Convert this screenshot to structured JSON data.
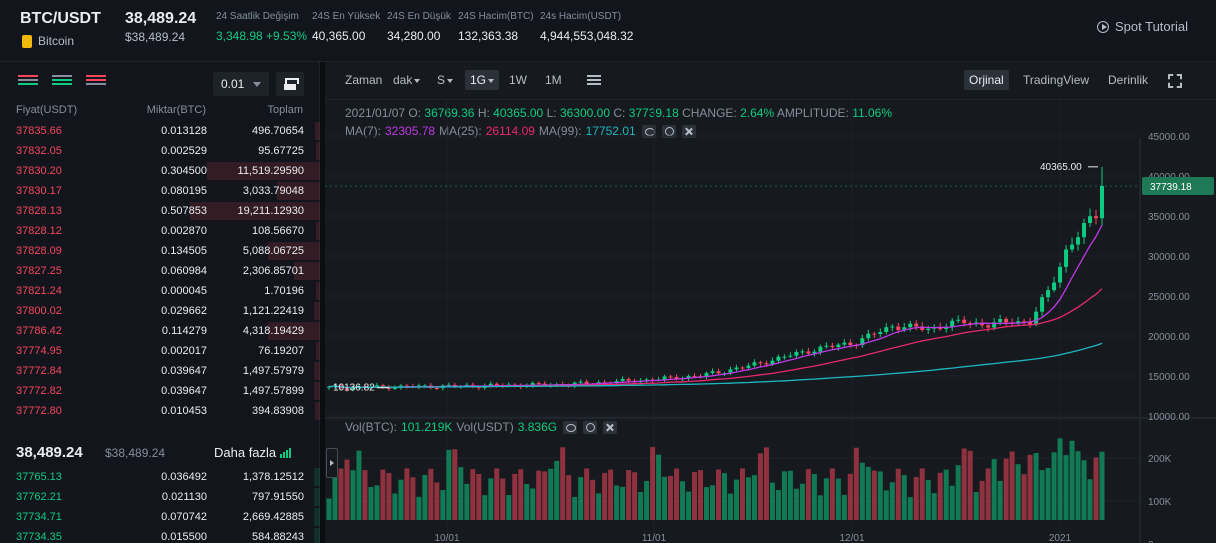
{
  "header": {
    "pair": "BTC/USDT",
    "coin_name": "Bitcoin",
    "last_price": "38,489.24",
    "last_price_usd": "$38,489.24",
    "stats": [
      {
        "label": "24 Saatlik Değişim",
        "value": "3,348.98 +9.53%",
        "color": "green"
      },
      {
        "label": "24S En Yüksek",
        "value": "40,365.00"
      },
      {
        "label": "24S En Düşük",
        "value": "34,280.00"
      },
      {
        "label": "24S Hacim(BTC)",
        "value": "132,363.38"
      },
      {
        "label": "24s Hacim(USDT)",
        "value": "4,944,553,048.32"
      }
    ],
    "spot_tutorial": "Spot Tutorial"
  },
  "orderbook": {
    "precision": "0.01",
    "col_price": "Fiyat(USDT)",
    "col_amount": "Miktar(BTC)",
    "col_total": "Toplam",
    "asks": [
      {
        "price": "37835.66",
        "amount": "0.013128",
        "total": "496.70654",
        "depth": 0.04
      },
      {
        "price": "37832.05",
        "amount": "0.002529",
        "total": "95.67725",
        "depth": 0.02
      },
      {
        "price": "37830.20",
        "amount": "0.304500",
        "total": "11,519.29590",
        "depth": 0.87
      },
      {
        "price": "37830.17",
        "amount": "0.080195",
        "total": "3,033.79048",
        "depth": 0.33
      },
      {
        "price": "37828.13",
        "amount": "0.507853",
        "total": "19,211.12930",
        "depth": 1.0
      },
      {
        "price": "37828.12",
        "amount": "0.002870",
        "total": "108.56670",
        "depth": 0.03
      },
      {
        "price": "37828.09",
        "amount": "0.134505",
        "total": "5,088.06725",
        "depth": 0.4
      },
      {
        "price": "37827.25",
        "amount": "0.060984",
        "total": "2,306.85701",
        "depth": 0.2
      },
      {
        "price": "37821.24",
        "amount": "0.000045",
        "total": "1.70196",
        "depth": 0.02
      },
      {
        "price": "37800.02",
        "amount": "0.029662",
        "total": "1,121.22419",
        "depth": 0.05
      },
      {
        "price": "37786.42",
        "amount": "0.114279",
        "total": "4,318.19429",
        "depth": 0.4
      },
      {
        "price": "37774.95",
        "amount": "0.002017",
        "total": "76.19207",
        "depth": 0.01
      },
      {
        "price": "37772.84",
        "amount": "0.039647",
        "total": "1,497.57979",
        "depth": 0.05
      },
      {
        "price": "37772.82",
        "amount": "0.039647",
        "total": "1,497.57899",
        "depth": 0.05
      },
      {
        "price": "37772.80",
        "amount": "0.010453",
        "total": "394.83908",
        "depth": 0.04
      }
    ],
    "mid_price": "38,489.24",
    "mid_price_usd": "$38,489.24",
    "more_label": "Daha fazla",
    "bids": [
      {
        "price": "37765.13",
        "amount": "0.036492",
        "total": "1,378.12512",
        "depth": 0.05
      },
      {
        "price": "37762.21",
        "amount": "0.021130",
        "total": "797.91550",
        "depth": 0.05
      },
      {
        "price": "37734.71",
        "amount": "0.070742",
        "total": "2,669.42885",
        "depth": 0.05
      },
      {
        "price": "37734.35",
        "amount": "0.015500",
        "total": "584.88243",
        "depth": 0.05
      }
    ]
  },
  "toolbar": {
    "time_label": "Zaman",
    "intervals": [
      "dak",
      "S",
      "1G",
      "1W",
      "1M"
    ],
    "selected_interval": "1G",
    "views": [
      "Orjinal",
      "TradingView",
      "Derinlik"
    ],
    "active_view": "Orjinal"
  },
  "legend": {
    "date": "2021/01/07",
    "o_label": "O:",
    "o": "36769.36",
    "h_label": "H:",
    "h": "40365.00",
    "l_label": "L:",
    "l": "36300.00",
    "c_label": "C:",
    "c": "37739.18",
    "change_label": "CHANGE:",
    "change": "2.64%",
    "amplitude_label": "AMPLITUDE:",
    "amplitude": "11.06%",
    "ma7_label": "MA(7):",
    "ma7": "32305.78",
    "ma25_label": "MA(25):",
    "ma25": "26114.09",
    "ma99_label": "MA(99):",
    "ma99": "17752.01"
  },
  "volume_legend": {
    "btc_label": "Vol(BTC):",
    "btc": "101.219K",
    "usdt_label": "Vol(USDT)",
    "usdt": "3.836G"
  },
  "colors": {
    "up": "#0ecb81",
    "down": "#f6465d",
    "ma7": "#c038e8",
    "ma25": "#e8296e",
    "ma99": "#1fb6c2"
  },
  "chart_data": {
    "type": "candlestick",
    "price_axis": [
      "45000.00",
      "40000.00",
      "35000.00",
      "30000.00",
      "25000.00",
      "20000.00",
      "15000.00",
      "10000.00"
    ],
    "ylim": [
      7500,
      46500
    ],
    "volume_axis": [
      "200K",
      "100K",
      "0"
    ],
    "x_ticks": [
      "10/01",
      "11/01",
      "12/01",
      "2021"
    ],
    "current_price_label": "37739.18",
    "max_marker": "40365.00",
    "min_marker": "10136.82"
  }
}
